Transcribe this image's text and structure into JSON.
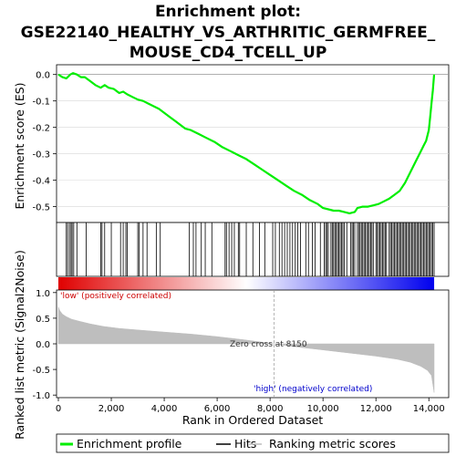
{
  "chart_data": {
    "type": "line",
    "title_lines": [
      "Enrichment plot:",
      "GSE22140_HEALTHY_VS_ARTHRITIC_GERMFREE_",
      "MOUSE_CD4_TCELL_UP"
    ],
    "es_panel": {
      "ylabel": "Enrichment score (ES)",
      "ylim": [
        -0.56,
        0.03
      ],
      "yticks": [
        "0.0",
        "-0.1",
        "-0.2",
        "-0.3",
        "-0.4",
        "-0.5"
      ],
      "ytick_values": [
        0.0,
        -0.1,
        -0.2,
        -0.3,
        -0.4,
        -0.5
      ],
      "series": [
        {
          "name": "Enrichment profile",
          "color": "#00ee00",
          "x": [
            0,
            150,
            300,
            450,
            550,
            700,
            850,
            1000,
            1200,
            1400,
            1600,
            1750,
            1900,
            2100,
            2300,
            2450,
            2600,
            2800,
            3000,
            3200,
            3400,
            3600,
            3800,
            4000,
            4200,
            4400,
            4600,
            4800,
            5000,
            5300,
            5600,
            5900,
            6200,
            6500,
            6800,
            7100,
            7400,
            7700,
            8000,
            8300,
            8600,
            8900,
            9200,
            9500,
            9800,
            10000,
            10200,
            10400,
            10600,
            10800,
            11000,
            11200,
            11300,
            11500,
            11700,
            11900,
            12100,
            12300,
            12500,
            12700,
            12900,
            13100,
            13300,
            13500,
            13700,
            13800,
            13900,
            14000,
            14050,
            14100,
            14150,
            14200
          ],
          "values": [
            0.0,
            -0.01,
            -0.015,
            0.0,
            0.005,
            0.0,
            -0.01,
            -0.01,
            -0.025,
            -0.04,
            -0.05,
            -0.04,
            -0.05,
            -0.055,
            -0.07,
            -0.065,
            -0.075,
            -0.085,
            -0.095,
            -0.1,
            -0.11,
            -0.12,
            -0.13,
            -0.145,
            -0.16,
            -0.175,
            -0.19,
            -0.205,
            -0.21,
            -0.225,
            -0.24,
            -0.255,
            -0.275,
            -0.29,
            -0.305,
            -0.32,
            -0.34,
            -0.36,
            -0.38,
            -0.4,
            -0.42,
            -0.44,
            -0.455,
            -0.475,
            -0.49,
            -0.505,
            -0.51,
            -0.515,
            -0.515,
            -0.52,
            -0.525,
            -0.52,
            -0.505,
            -0.5,
            -0.5,
            -0.495,
            -0.49,
            -0.48,
            -0.47,
            -0.455,
            -0.44,
            -0.41,
            -0.37,
            -0.33,
            -0.29,
            -0.27,
            -0.25,
            -0.21,
            -0.16,
            -0.11,
            -0.06,
            0.0
          ]
        }
      ]
    },
    "hits_panel": {
      "positions": [
        300,
        350,
        420,
        480,
        520,
        580,
        700,
        1050,
        1600,
        1650,
        1750,
        2000,
        2350,
        2450,
        2550,
        2600,
        3000,
        3050,
        3200,
        3350,
        3700,
        3850,
        4950,
        5100,
        5200,
        5400,
        5550,
        5800,
        6300,
        6350,
        6450,
        6550,
        6650,
        6800,
        6850,
        7100,
        7350,
        7600,
        7800,
        8100,
        8200,
        8350,
        8450,
        8550,
        8650,
        8750,
        8850,
        8950,
        9050,
        9150,
        9350,
        9450,
        9600,
        9700,
        9900,
        10050,
        10100,
        10150,
        10200,
        10300,
        10350,
        10400,
        10450,
        10500,
        10550,
        10600,
        10650,
        10700,
        10750,
        10800,
        10900,
        11050,
        11100,
        11150,
        11200,
        11300,
        11350,
        11400,
        11450,
        11500,
        11550,
        11600,
        11650,
        11700,
        11750,
        11800,
        11850,
        11900,
        12000,
        12050,
        12100,
        12150,
        12200,
        12250,
        12300,
        12350,
        12400,
        12500,
        12550,
        12600,
        12650,
        12700,
        12750,
        12800,
        12850,
        12900,
        12950,
        13000,
        13050,
        13100,
        13150,
        13200,
        13250,
        13300,
        13350,
        13400,
        13450,
        13500,
        13550,
        13600,
        13650,
        13700,
        13750,
        13800,
        13850,
        13900,
        13950,
        14000,
        14050,
        14100,
        14150,
        14200
      ]
    },
    "metric_panel": {
      "ylabel": "Ranked list metric (Signal2Noise)",
      "ylim": [
        -1.05,
        1.05
      ],
      "yticks": [
        "1.0",
        "0.5",
        "0.0",
        "-0.5",
        "-1.0"
      ],
      "ytick_values": [
        1.0,
        0.5,
        0.0,
        -0.5,
        -1.0
      ],
      "x": [
        0,
        50,
        150,
        300,
        500,
        800,
        1200,
        1700,
        2300,
        3000,
        4000,
        5000,
        6000,
        7000,
        8150,
        9000,
        10000,
        11000,
        12000,
        12800,
        13300,
        13700,
        13950,
        14100,
        14200
      ],
      "values": [
        0.72,
        0.65,
        0.58,
        0.53,
        0.48,
        0.44,
        0.39,
        0.34,
        0.3,
        0.27,
        0.23,
        0.19,
        0.14,
        0.08,
        0.0,
        -0.06,
        -0.12,
        -0.18,
        -0.24,
        -0.3,
        -0.36,
        -0.44,
        -0.52,
        -0.62,
        -0.95
      ],
      "color": "#bebebe",
      "annotations": {
        "low": "'low' (positively correlated)",
        "high": "'high' (negatively correlated)",
        "zero_cross": "Zero cross at 8150"
      },
      "zero_cross": 8150
    },
    "xaxis": {
      "label": "Rank in Ordered Dataset",
      "xlim": [
        0,
        14750
      ],
      "ticks": [
        "0",
        "2,000",
        "4,000",
        "6,000",
        "8,000",
        "10,000",
        "12,000",
        "14,000"
      ],
      "tick_values": [
        0,
        2000,
        4000,
        6000,
        8000,
        10000,
        12000,
        14000
      ]
    },
    "gradient": {
      "start": "#e00000",
      "mid": "#ffffff",
      "end": "#0000ee",
      "total": 14200
    },
    "legend": [
      "Enrichment profile",
      "Hits",
      "Ranking metric scores"
    ]
  }
}
